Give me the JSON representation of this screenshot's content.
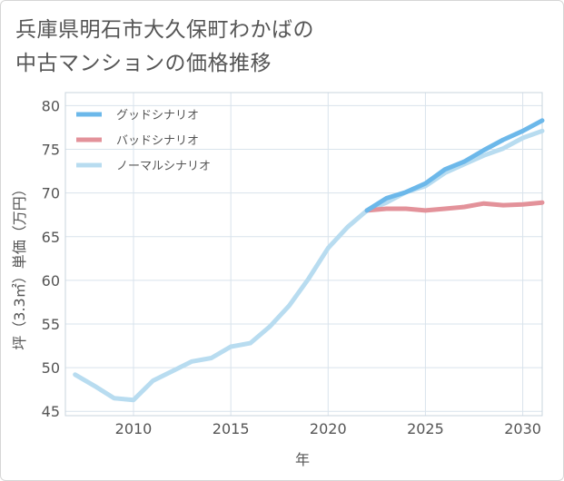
{
  "title_lines": [
    "兵庫県明石市大久保町わかばの",
    "中古マンションの価格推移"
  ],
  "chart_data": {
    "type": "line",
    "xlabel": "年",
    "ylabel": "坪（3.3㎡）単価（万円）",
    "xlim": [
      2006.5,
      2031
    ],
    "ylim": [
      44.5,
      81.5
    ],
    "x_ticks": [
      2010,
      2015,
      2020,
      2025,
      2030
    ],
    "y_ticks": [
      45,
      50,
      55,
      60,
      65,
      70,
      75,
      80
    ],
    "grid": true,
    "legend_position": "top-left",
    "series": [
      {
        "name": "グッドシナリオ",
        "color": "#6cb8ea",
        "x": [
          2022,
          2023,
          2024,
          2025,
          2026,
          2027,
          2028,
          2029,
          2030,
          2031
        ],
        "y": [
          68.0,
          69.4,
          70.1,
          71.1,
          72.7,
          73.6,
          74.9,
          76.1,
          77.1,
          78.3
        ]
      },
      {
        "name": "バッドシナリオ",
        "color": "#e3929a",
        "x": [
          2022,
          2023,
          2024,
          2025,
          2026,
          2027,
          2028,
          2029,
          2030,
          2031
        ],
        "y": [
          68.0,
          68.2,
          68.2,
          68.0,
          68.2,
          68.4,
          68.8,
          68.6,
          68.7,
          68.9
        ]
      },
      {
        "name": "ノーマルシナリオ",
        "color": "#b8dcf0",
        "x": [
          2007,
          2008,
          2009,
          2010,
          2011,
          2012,
          2013,
          2014,
          2015,
          2016,
          2017,
          2018,
          2019,
          2020,
          2021,
          2022,
          2023,
          2024,
          2025,
          2026,
          2027,
          2028,
          2029,
          2030,
          2031
        ],
        "y": [
          49.2,
          47.9,
          46.5,
          46.3,
          48.5,
          49.6,
          50.7,
          51.1,
          52.4,
          52.8,
          54.7,
          57.1,
          60.2,
          63.7,
          66.1,
          68.0,
          68.9,
          70.1,
          70.8,
          72.3,
          73.3,
          74.3,
          75.1,
          76.3,
          77.1
        ]
      }
    ]
  }
}
